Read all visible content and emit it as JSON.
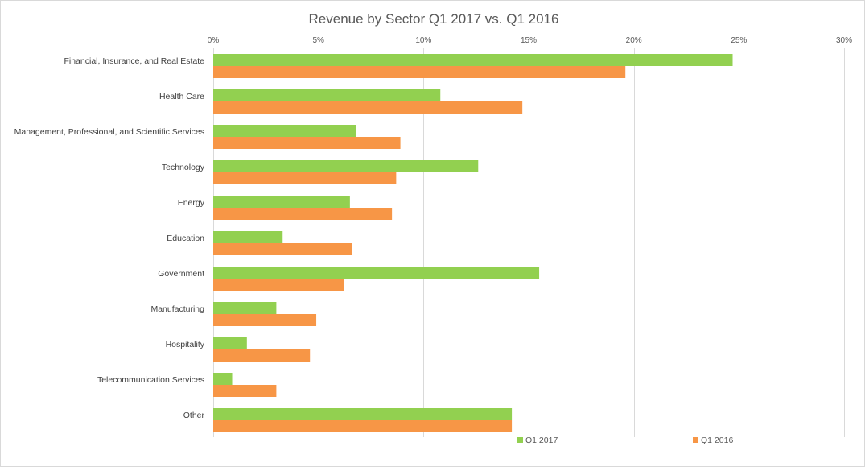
{
  "chart_data": {
    "type": "bar",
    "orientation": "horizontal",
    "title": "Revenue by Sector Q1 2017 vs. Q1 2016",
    "xlabel": "",
    "ylabel": "",
    "xlim": [
      0,
      30
    ],
    "x_ticks": [
      0,
      5,
      10,
      15,
      20,
      25,
      30
    ],
    "x_tick_labels": [
      "0%",
      "5%",
      "10%",
      "15%",
      "20%",
      "25%",
      "30%"
    ],
    "x_axis_position": "top",
    "grid": true,
    "legend_position": "bottom",
    "categories": [
      "Financial, Insurance, and Real Estate",
      "Health Care",
      "Management, Professional, and Scientific Services",
      "Technology",
      "Energy",
      "Education",
      "Government",
      "Manufacturing",
      "Hospitality",
      "Telecommunication Services",
      "Other"
    ],
    "series": [
      {
        "name": "Q1 2017",
        "color": "#92d050",
        "values": [
          24.7,
          10.8,
          6.8,
          12.6,
          6.5,
          3.3,
          15.5,
          3.0,
          1.6,
          0.9,
          14.2
        ]
      },
      {
        "name": "Q1 2016",
        "color": "#f79646",
        "values": [
          19.6,
          14.7,
          8.9,
          8.7,
          8.5,
          6.6,
          6.2,
          4.9,
          4.6,
          3.0,
          14.2
        ]
      }
    ]
  }
}
